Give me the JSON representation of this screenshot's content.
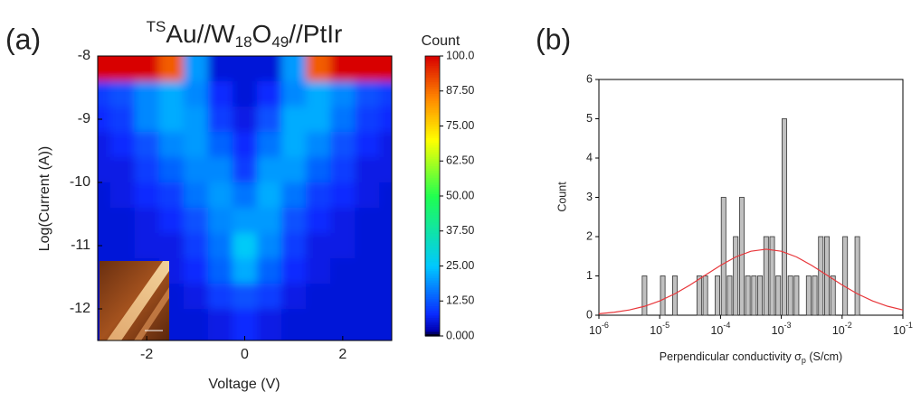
{
  "chart_data": [
    {
      "type": "heatmap",
      "panel_label": "(a)",
      "title_parts": [
        "TS",
        "Au//W",
        "18",
        "O",
        "49",
        "//PtIr"
      ],
      "xlabel": "Voltage (V)",
      "ylabel": "Log(Current (A))",
      "colorbar_title": "Count",
      "xlim": [
        -3,
        3
      ],
      "xticks": [
        -2,
        0,
        2
      ],
      "ylim": [
        -12.5,
        -8
      ],
      "yticks": [
        -12,
        -11,
        -10,
        -9,
        -8
      ],
      "clim": [
        0,
        100
      ],
      "cticks": [
        {
          "value": 0,
          "label": "0.000"
        },
        {
          "value": 12.5,
          "label": "12.50"
        },
        {
          "value": 25,
          "label": "25.00"
        },
        {
          "value": 37.5,
          "label": "37.50"
        },
        {
          "value": 50,
          "label": "50.00"
        },
        {
          "value": 62.5,
          "label": "62.50"
        },
        {
          "value": 75,
          "label": "75.00"
        },
        {
          "value": 87.5,
          "label": "87.50"
        },
        {
          "value": 100,
          "label": "100.0"
        }
      ],
      "colormap": [
        [
          0,
          "#000000"
        ],
        [
          0.02,
          "#0000b0"
        ],
        [
          0.08,
          "#0a2cff"
        ],
        [
          0.25,
          "#00c8ff"
        ],
        [
          0.5,
          "#20ff50"
        ],
        [
          0.7,
          "#ffff00"
        ],
        [
          0.85,
          "#ff8800"
        ],
        [
          1,
          "#d80000"
        ]
      ],
      "x": [
        -3,
        -2.5,
        -2,
        -1.5,
        -1,
        -0.5,
        0,
        0.5,
        1,
        1.5,
        2,
        2.5,
        3
      ],
      "y": [
        -8.2,
        -8.6,
        -9.0,
        -9.4,
        -9.8,
        -10.2,
        -10.6,
        -11.0,
        -11.4,
        -11.8,
        -12.2
      ],
      "z": [
        [
          100,
          100,
          100,
          90,
          20,
          5,
          5,
          5,
          20,
          90,
          100,
          100,
          100
        ],
        [
          10,
          12,
          18,
          22,
          18,
          8,
          5,
          8,
          18,
          22,
          18,
          12,
          10
        ],
        [
          8,
          10,
          18,
          22,
          20,
          10,
          6,
          12,
          22,
          22,
          16,
          10,
          8
        ],
        [
          6,
          8,
          12,
          18,
          20,
          14,
          8,
          16,
          22,
          18,
          12,
          8,
          6
        ],
        [
          6,
          6,
          10,
          14,
          18,
          18,
          10,
          20,
          20,
          14,
          10,
          6,
          6
        ],
        [
          5,
          6,
          8,
          10,
          16,
          20,
          16,
          22,
          16,
          10,
          8,
          6,
          5
        ],
        [
          5,
          5,
          6,
          8,
          12,
          18,
          20,
          20,
          12,
          8,
          6,
          5,
          5
        ],
        [
          5,
          5,
          6,
          6,
          10,
          16,
          26,
          18,
          10,
          6,
          6,
          5,
          5
        ],
        [
          5,
          5,
          5,
          6,
          8,
          14,
          22,
          14,
          8,
          6,
          5,
          5,
          5
        ],
        [
          5,
          5,
          5,
          5,
          6,
          10,
          12,
          10,
          6,
          5,
          5,
          5,
          5
        ],
        [
          5,
          5,
          5,
          5,
          5,
          6,
          8,
          6,
          5,
          5,
          5,
          5,
          5
        ]
      ]
    },
    {
      "type": "histogram",
      "panel_label": "(b)",
      "xlabel_parts": [
        "Perpendicular conductivity σ",
        "p",
        " (S/cm)"
      ],
      "ylabel": "Count",
      "xscale": "log",
      "xlim": [
        1e-06,
        0.1
      ],
      "xticks": [
        {
          "value": 1e-06,
          "label": "10",
          "exponent": "-6"
        },
        {
          "value": 1e-05,
          "label": "10",
          "exponent": "-5"
        },
        {
          "value": 0.0001,
          "label": "10",
          "exponent": "-4"
        },
        {
          "value": 0.001,
          "label": "10",
          "exponent": "-3"
        },
        {
          "value": 0.01,
          "label": "10",
          "exponent": "-2"
        },
        {
          "value": 0.1,
          "label": "10",
          "exponent": "-1"
        }
      ],
      "ylim": [
        0,
        6
      ],
      "yticks": [
        0,
        1,
        2,
        3,
        4,
        5,
        6
      ],
      "color": "#c0c0c0",
      "bins": [
        3.162e-06,
        3.981e-06,
        5.012e-06,
        6.31e-06,
        7.943e-06,
        1e-05,
        1.259e-05,
        1.585e-05,
        1.995e-05,
        2.512e-05,
        3.162e-05,
        3.981e-05,
        5.012e-05,
        6.31e-05,
        7.943e-05,
        0.0001,
        0.0001259,
        0.0001585,
        0.0001995,
        0.0002512,
        0.0003162,
        0.0003981,
        0.0005012,
        0.000631,
        0.0007943,
        0.001,
        0.001259,
        0.001585,
        0.001995,
        0.002512,
        0.003162,
        0.003981,
        0.005012,
        0.00631,
        0.007943,
        0.01,
        0.01259,
        0.01585,
        0.01995,
        0.02512,
        0.03162
      ],
      "counts": [
        0,
        0,
        1,
        0,
        0,
        1,
        0,
        1,
        0,
        0,
        0,
        1,
        1,
        0,
        1,
        3,
        1,
        2,
        3,
        1,
        1,
        1,
        2,
        2,
        1,
        5,
        1,
        1,
        0,
        1,
        1,
        2,
        2,
        1,
        0,
        2,
        0,
        2,
        0,
        0
      ],
      "fit": {
        "color": "#e8363a",
        "x": [
          1e-06,
          1.778e-06,
          3.162e-06,
          5.623e-06,
          1e-05,
          1.778e-05,
          3.162e-05,
          5.623e-05,
          0.0001,
          0.0001778,
          0.0003162,
          0.0005623,
          0.001,
          0.001778,
          0.003162,
          0.005623,
          0.01,
          0.01778,
          0.03162,
          0.05623,
          0.1
        ],
        "values": [
          0.038,
          0.074,
          0.134,
          0.227,
          0.364,
          0.546,
          0.769,
          1.019,
          1.268,
          1.483,
          1.628,
          1.68,
          1.628,
          1.483,
          1.268,
          1.019,
          0.769,
          0.546,
          0.364,
          0.227,
          0.134
        ]
      }
    }
  ]
}
